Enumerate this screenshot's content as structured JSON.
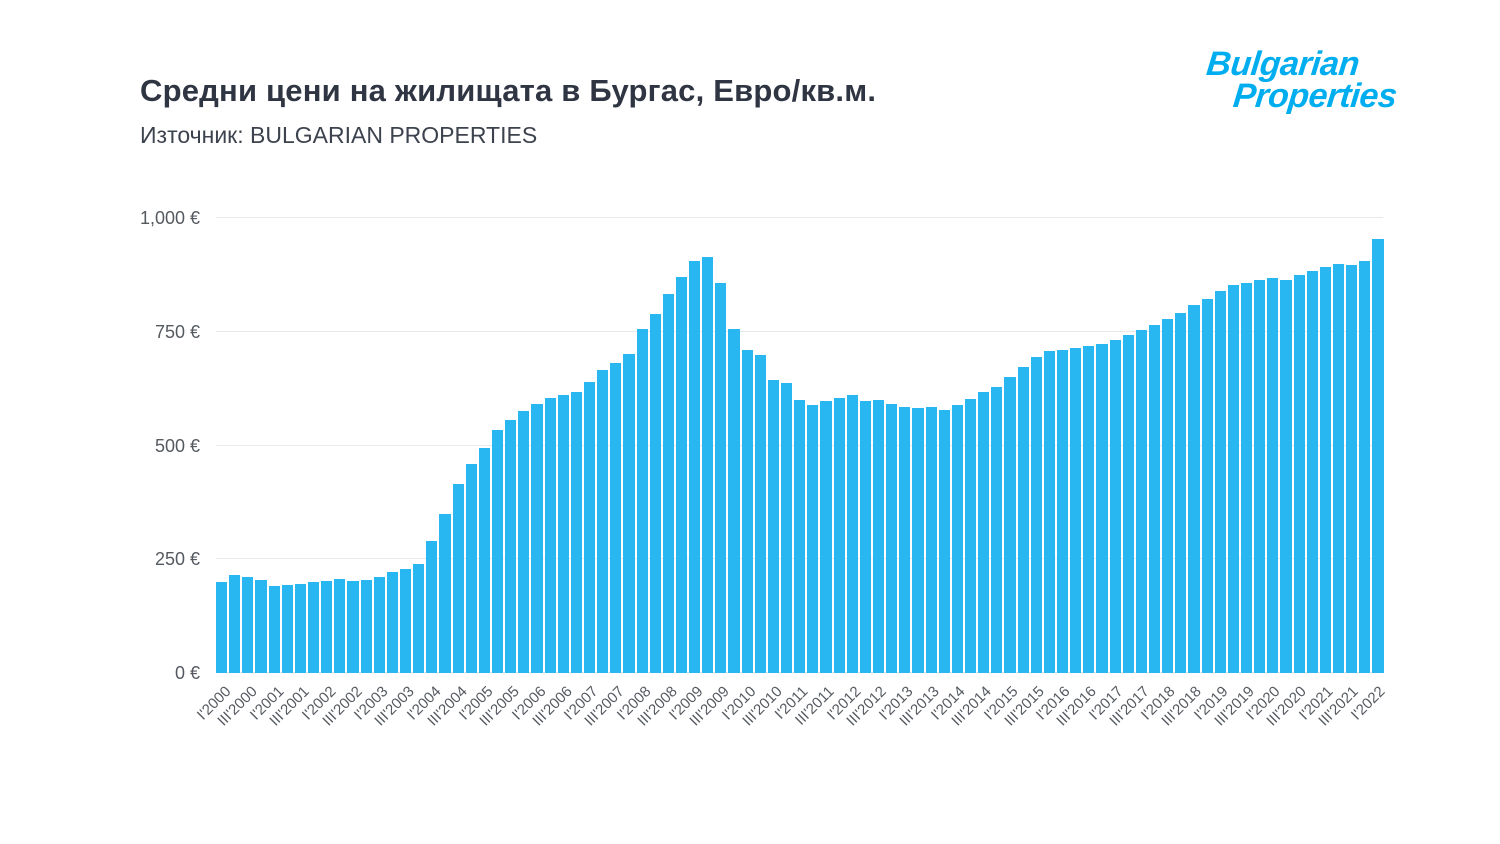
{
  "header": {
    "title": "Средни цени на жилищата в Бургас, Евро/кв.м.",
    "source": "Източник: BULGARIAN PROPERTIES"
  },
  "logo": {
    "line1": "Bulgarian",
    "line2": "Properties",
    "color": "#00aeef"
  },
  "chart_data": {
    "type": "bar",
    "title": "Средни цени на жилищата в Бургас, Евро/кв.м.",
    "xlabel": "",
    "ylabel": "",
    "unit": "€/кв.м.",
    "bar_color": "#29b7f2",
    "grid": true,
    "legend": "none",
    "ylim": [
      0,
      1000
    ],
    "x_tick_every": 2,
    "y_ticks": [
      {
        "value": 0,
        "label": "0 €"
      },
      {
        "value": 250,
        "label": "250 €"
      },
      {
        "value": 500,
        "label": "500 €"
      },
      {
        "value": 750,
        "label": "750 €"
      },
      {
        "value": 1000,
        "label": "1,000 €"
      }
    ],
    "categories": [
      "I'2000",
      "II'2000",
      "III'2000",
      "IV'2000",
      "I'2001",
      "II'2001",
      "III'2001",
      "IV'2001",
      "I'2002",
      "II'2002",
      "III'2002",
      "IV'2002",
      "I'2003",
      "II'2003",
      "III'2003",
      "IV'2003",
      "I'2004",
      "II'2004",
      "III'2004",
      "IV'2004",
      "I'2005",
      "II'2005",
      "III'2005",
      "IV'2005",
      "I'2006",
      "II'2006",
      "III'2006",
      "IV'2006",
      "I'2007",
      "II'2007",
      "III'2007",
      "IV'2007",
      "I'2008",
      "II'2008",
      "III'2008",
      "IV'2008",
      "I'2009",
      "II'2009",
      "III'2009",
      "IV'2009",
      "I'2010",
      "II'2010",
      "III'2010",
      "IV'2010",
      "I'2011",
      "II'2011",
      "III'2011",
      "IV'2011",
      "I'2012",
      "II'2012",
      "III'2012",
      "IV'2012",
      "I'2013",
      "II'2013",
      "III'2013",
      "IV'2013",
      "I'2014",
      "II'2014",
      "III'2014",
      "IV'2014",
      "I'2015",
      "II'2015",
      "III'2015",
      "IV'2015",
      "I'2016",
      "II'2016",
      "III'2016",
      "IV'2016",
      "I'2017",
      "II'2017",
      "III'2017",
      "IV'2017",
      "I'2018",
      "II'2018",
      "III'2018",
      "IV'2018",
      "I'2019",
      "II'2019",
      "III'2019",
      "IV'2019",
      "I'2020",
      "II'2020",
      "III'2020",
      "IV'2020",
      "I'2021",
      "II'2021",
      "III'2021",
      "IV'2021",
      "I'2022"
    ],
    "values": [
      200,
      215,
      212,
      205,
      192,
      193,
      196,
      200,
      203,
      206,
      203,
      205,
      210,
      222,
      228,
      240,
      290,
      350,
      415,
      460,
      495,
      535,
      555,
      575,
      592,
      605,
      612,
      618,
      640,
      665,
      682,
      702,
      755,
      790,
      832,
      870,
      905,
      915,
      858,
      755,
      710,
      700,
      645,
      638,
      600,
      590,
      597,
      605,
      610,
      598,
      600,
      592,
      585,
      582,
      585,
      578,
      590,
      602,
      617,
      628,
      650,
      672,
      695,
      707,
      710,
      714,
      718,
      723,
      732,
      742,
      753,
      765,
      778,
      792,
      808,
      823,
      840,
      852,
      858,
      864,
      868,
      864,
      875,
      884,
      893,
      900,
      896,
      905,
      953
    ]
  }
}
